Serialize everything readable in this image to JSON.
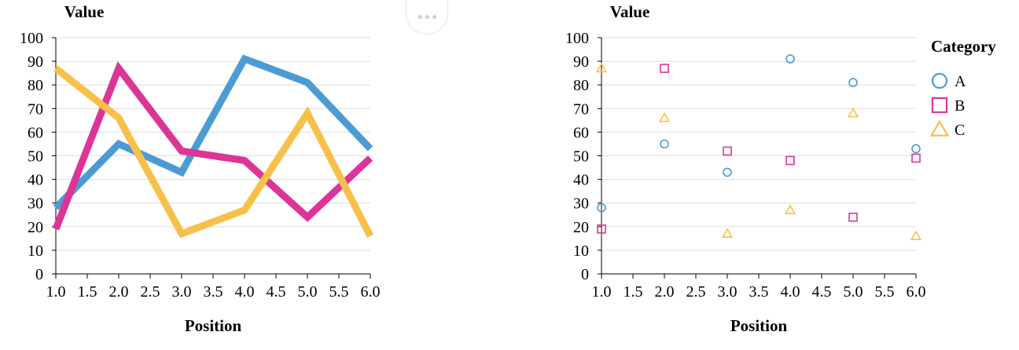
{
  "actions_menu": {
    "icon": "more-horizontal-icon"
  },
  "chart_data": [
    {
      "type": "line",
      "title": "",
      "xlabel": "Position",
      "ylabel": "Value",
      "xlim": [
        1.0,
        6.0
      ],
      "ylim": [
        0,
        100
      ],
      "x_ticks": [
        "1.0",
        "1.5",
        "2.0",
        "2.5",
        "3.0",
        "3.5",
        "4.0",
        "4.5",
        "5.0",
        "5.5",
        "6.0"
      ],
      "y_ticks": [
        "0",
        "10",
        "20",
        "30",
        "40",
        "50",
        "60",
        "70",
        "80",
        "90",
        "100"
      ],
      "grid": "horizontal",
      "legend": "none",
      "x": [
        1.0,
        2.0,
        3.0,
        4.0,
        5.0,
        6.0
      ],
      "series": [
        {
          "key": "A",
          "color": "#4c9bd4",
          "values": [
            28,
            55,
            43,
            91,
            81,
            53
          ]
        },
        {
          "key": "B",
          "color": "#dd3497",
          "values": [
            19,
            87,
            52,
            48,
            24,
            49
          ]
        },
        {
          "key": "C",
          "color": "#f7c04a",
          "values": [
            87,
            66,
            17,
            27,
            68,
            16
          ]
        }
      ]
    },
    {
      "type": "scatter",
      "title": "",
      "xlabel": "Position",
      "ylabel": "Value",
      "xlim": [
        1.0,
        6.0
      ],
      "ylim": [
        0,
        100
      ],
      "x_ticks": [
        "1.0",
        "1.5",
        "2.0",
        "2.5",
        "3.0",
        "3.5",
        "4.0",
        "4.5",
        "5.0",
        "5.5",
        "6.0"
      ],
      "y_ticks": [
        "0",
        "10",
        "20",
        "30",
        "40",
        "50",
        "60",
        "70",
        "80",
        "90",
        "100"
      ],
      "grid": "horizontal",
      "legend": "right",
      "legend_title": "Category",
      "x": [
        1.0,
        2.0,
        3.0,
        4.0,
        5.0,
        6.0
      ],
      "series": [
        {
          "name": "A",
          "marker": "circle",
          "color": "#4c9bd4",
          "values": [
            28,
            55,
            43,
            91,
            81,
            53
          ]
        },
        {
          "name": "B",
          "marker": "square",
          "color": "#dd3497",
          "values": [
            19,
            87,
            52,
            48,
            24,
            49
          ]
        },
        {
          "name": "C",
          "marker": "triangle",
          "color": "#f7c04a",
          "values": [
            87,
            66,
            17,
            27,
            68,
            16
          ]
        }
      ]
    }
  ]
}
